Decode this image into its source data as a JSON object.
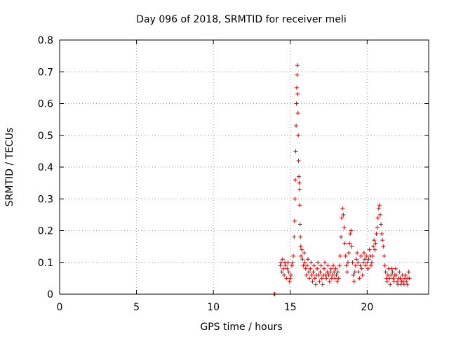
{
  "chart_data": {
    "type": "scatter",
    "title": "Day 096 of 2018, SRMTID for receiver meli",
    "xlabel": "GPS time / hours",
    "ylabel": "SRMTID / TECUs",
    "xlim": [
      0,
      24
    ],
    "ylim": [
      0,
      0.8
    ],
    "x_ticks": [
      0,
      5,
      10,
      15,
      20
    ],
    "x_tick_labels": [
      "0",
      "5",
      "10",
      "15",
      "20"
    ],
    "y_ticks": [
      0,
      0.1,
      0.2,
      0.3,
      0.4,
      0.5,
      0.6,
      0.7,
      0.8
    ],
    "y_tick_labels": [
      "0",
      "0.1",
      "0.2",
      "0.3",
      "0.4",
      "0.5",
      "0.6",
      "0.7",
      "0.8"
    ],
    "grid": true,
    "marker": "+",
    "color": "#e00000",
    "series": [
      {
        "name": "SRMTID",
        "points": [
          [
            13.95,
            0.0
          ],
          [
            14.0,
            0.0
          ],
          [
            14.35,
            0.09
          ],
          [
            14.4,
            0.1
          ],
          [
            14.45,
            0.07
          ],
          [
            14.5,
            0.11
          ],
          [
            14.55,
            0.08
          ],
          [
            14.6,
            0.06
          ],
          [
            14.65,
            0.1
          ],
          [
            14.7,
            0.09
          ],
          [
            14.75,
            0.05
          ],
          [
            14.8,
            0.08
          ],
          [
            14.85,
            0.1
          ],
          [
            14.9,
            0.07
          ],
          [
            14.95,
            0.04
          ],
          [
            15.0,
            0.05
          ],
          [
            15.05,
            0.06
          ],
          [
            15.1,
            0.09
          ],
          [
            15.15,
            0.1
          ],
          [
            15.2,
            0.12
          ],
          [
            15.25,
            0.18
          ],
          [
            15.28,
            0.23
          ],
          [
            15.3,
            0.3
          ],
          [
            15.33,
            0.36
          ],
          [
            15.35,
            0.45
          ],
          [
            15.38,
            0.53
          ],
          [
            15.4,
            0.6
          ],
          [
            15.42,
            0.65
          ],
          [
            15.44,
            0.69
          ],
          [
            15.46,
            0.72
          ],
          [
            15.48,
            0.63
          ],
          [
            15.5,
            0.57
          ],
          [
            15.52,
            0.5
          ],
          [
            15.54,
            0.42
          ],
          [
            15.56,
            0.37
          ],
          [
            15.58,
            0.35
          ],
          [
            15.6,
            0.33
          ],
          [
            15.62,
            0.28
          ],
          [
            15.64,
            0.22
          ],
          [
            15.66,
            0.18
          ],
          [
            15.68,
            0.15
          ],
          [
            15.7,
            0.12
          ],
          [
            15.75,
            0.14
          ],
          [
            15.8,
            0.11
          ],
          [
            15.85,
            0.09
          ],
          [
            15.9,
            0.13
          ],
          [
            15.95,
            0.1
          ],
          [
            16.0,
            0.08
          ],
          [
            16.05,
            0.06
          ],
          [
            16.1,
            0.09
          ],
          [
            16.15,
            0.11
          ],
          [
            16.2,
            0.07
          ],
          [
            16.25,
            0.05
          ],
          [
            16.3,
            0.08
          ],
          [
            16.35,
            0.1
          ],
          [
            16.4,
            0.06
          ],
          [
            16.45,
            0.04
          ],
          [
            16.5,
            0.07
          ],
          [
            16.55,
            0.09
          ],
          [
            16.6,
            0.05
          ],
          [
            16.65,
            0.03
          ],
          [
            16.7,
            0.06
          ],
          [
            16.75,
            0.08
          ],
          [
            16.8,
            0.1
          ],
          [
            16.85,
            0.06
          ],
          [
            16.9,
            0.04
          ],
          [
            16.95,
            0.07
          ],
          [
            17.0,
            0.09
          ],
          [
            17.05,
            0.05
          ],
          [
            17.1,
            0.03
          ],
          [
            17.15,
            0.06
          ],
          [
            17.2,
            0.08
          ],
          [
            17.25,
            0.1
          ],
          [
            17.3,
            0.06
          ],
          [
            17.35,
            0.05
          ],
          [
            17.4,
            0.07
          ],
          [
            17.45,
            0.09
          ],
          [
            17.5,
            0.06
          ],
          [
            17.55,
            0.04
          ],
          [
            17.6,
            0.07
          ],
          [
            17.65,
            0.08
          ],
          [
            17.7,
            0.05
          ],
          [
            17.75,
            0.06
          ],
          [
            17.8,
            0.09
          ],
          [
            17.85,
            0.07
          ],
          [
            17.9,
            0.05
          ],
          [
            17.95,
            0.08
          ],
          [
            18.0,
            0.06
          ],
          [
            18.05,
            0.04
          ],
          [
            18.1,
            0.07
          ],
          [
            18.15,
            0.05
          ],
          [
            18.2,
            0.09
          ],
          [
            18.25,
            0.12
          ],
          [
            18.3,
            0.18
          ],
          [
            18.35,
            0.24
          ],
          [
            18.4,
            0.27
          ],
          [
            18.45,
            0.25
          ],
          [
            18.5,
            0.21
          ],
          [
            18.55,
            0.16
          ],
          [
            18.6,
            0.12
          ],
          [
            18.65,
            0.09
          ],
          [
            18.7,
            0.07
          ],
          [
            18.75,
            0.1
          ],
          [
            18.8,
            0.13
          ],
          [
            18.85,
            0.16
          ],
          [
            18.9,
            0.19
          ],
          [
            18.95,
            0.2
          ],
          [
            19.0,
            0.15
          ],
          [
            19.05,
            0.1
          ],
          [
            19.1,
            0.06
          ],
          [
            19.15,
            0.04
          ],
          [
            19.2,
            0.07
          ],
          [
            19.25,
            0.09
          ],
          [
            19.3,
            0.11
          ],
          [
            19.35,
            0.13
          ],
          [
            19.4,
            0.1
          ],
          [
            19.45,
            0.07
          ],
          [
            19.5,
            0.05
          ],
          [
            19.55,
            0.09
          ],
          [
            19.6,
            0.12
          ],
          [
            19.65,
            0.08
          ],
          [
            19.7,
            0.06
          ],
          [
            19.75,
            0.1
          ],
          [
            19.8,
            0.13
          ],
          [
            19.85,
            0.11
          ],
          [
            19.9,
            0.09
          ],
          [
            19.95,
            0.12
          ],
          [
            20.0,
            0.1
          ],
          [
            20.05,
            0.08
          ],
          [
            20.1,
            0.11
          ],
          [
            20.15,
            0.14
          ],
          [
            20.2,
            0.12
          ],
          [
            20.25,
            0.09
          ],
          [
            20.3,
            0.1
          ],
          [
            20.35,
            0.12
          ],
          [
            20.4,
            0.15
          ],
          [
            20.45,
            0.17
          ],
          [
            20.5,
            0.14
          ],
          [
            20.55,
            0.16
          ],
          [
            20.6,
            0.19
          ],
          [
            20.65,
            0.21
          ],
          [
            20.7,
            0.24
          ],
          [
            20.75,
            0.27
          ],
          [
            20.8,
            0.28
          ],
          [
            20.85,
            0.25
          ],
          [
            20.9,
            0.22
          ],
          [
            20.95,
            0.19
          ],
          [
            21.0,
            0.17
          ],
          [
            21.05,
            0.15
          ],
          [
            21.1,
            0.12
          ],
          [
            21.15,
            0.09
          ],
          [
            21.2,
            0.07
          ],
          [
            21.25,
            0.05
          ],
          [
            21.3,
            0.04
          ],
          [
            21.35,
            0.06
          ],
          [
            21.4,
            0.08
          ],
          [
            21.45,
            0.05
          ],
          [
            21.5,
            0.03
          ],
          [
            21.55,
            0.06
          ],
          [
            21.6,
            0.08
          ],
          [
            21.65,
            0.07
          ],
          [
            21.7,
            0.05
          ],
          [
            21.75,
            0.04
          ],
          [
            21.8,
            0.06
          ],
          [
            21.85,
            0.08
          ],
          [
            21.9,
            0.06
          ],
          [
            21.95,
            0.04
          ],
          [
            22.0,
            0.03
          ],
          [
            22.05,
            0.05
          ],
          [
            22.1,
            0.07
          ],
          [
            22.15,
            0.05
          ],
          [
            22.2,
            0.03
          ],
          [
            22.25,
            0.04
          ],
          [
            22.3,
            0.06
          ],
          [
            22.35,
            0.04
          ],
          [
            22.4,
            0.03
          ],
          [
            22.45,
            0.05
          ],
          [
            22.5,
            0.06
          ],
          [
            22.55,
            0.04
          ],
          [
            22.6,
            0.03
          ],
          [
            22.65,
            0.05
          ],
          [
            22.7,
            0.07
          ],
          [
            22.75,
            0.05
          ]
        ]
      }
    ]
  }
}
